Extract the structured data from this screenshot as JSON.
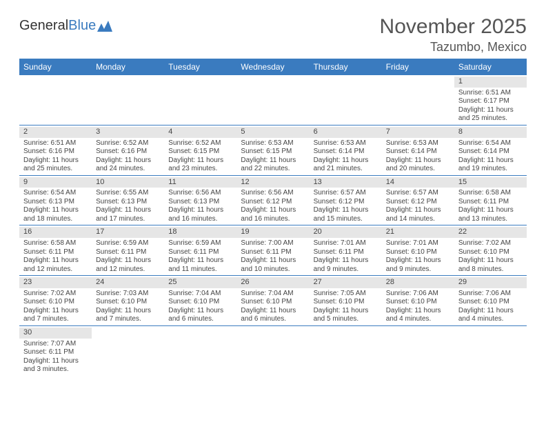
{
  "logo": {
    "text1": "General",
    "text2": "Blue"
  },
  "title": "November 2025",
  "location": "Tazumbo, Mexico",
  "colors": {
    "header_bg": "#3a7bbf",
    "header_text": "#ffffff",
    "daynum_bg": "#e6e6e6",
    "border": "#3a7bbf",
    "text": "#444444",
    "page_bg": "#ffffff"
  },
  "day_headers": [
    "Sunday",
    "Monday",
    "Tuesday",
    "Wednesday",
    "Thursday",
    "Friday",
    "Saturday"
  ],
  "weeks": [
    [
      {
        "n": "",
        "sr": "",
        "ss": "",
        "dl": ""
      },
      {
        "n": "",
        "sr": "",
        "ss": "",
        "dl": ""
      },
      {
        "n": "",
        "sr": "",
        "ss": "",
        "dl": ""
      },
      {
        "n": "",
        "sr": "",
        "ss": "",
        "dl": ""
      },
      {
        "n": "",
        "sr": "",
        "ss": "",
        "dl": ""
      },
      {
        "n": "",
        "sr": "",
        "ss": "",
        "dl": ""
      },
      {
        "n": "1",
        "sr": "Sunrise: 6:51 AM",
        "ss": "Sunset: 6:17 PM",
        "dl": "Daylight: 11 hours and 25 minutes."
      }
    ],
    [
      {
        "n": "2",
        "sr": "Sunrise: 6:51 AM",
        "ss": "Sunset: 6:16 PM",
        "dl": "Daylight: 11 hours and 25 minutes."
      },
      {
        "n": "3",
        "sr": "Sunrise: 6:52 AM",
        "ss": "Sunset: 6:16 PM",
        "dl": "Daylight: 11 hours and 24 minutes."
      },
      {
        "n": "4",
        "sr": "Sunrise: 6:52 AM",
        "ss": "Sunset: 6:15 PM",
        "dl": "Daylight: 11 hours and 23 minutes."
      },
      {
        "n": "5",
        "sr": "Sunrise: 6:53 AM",
        "ss": "Sunset: 6:15 PM",
        "dl": "Daylight: 11 hours and 22 minutes."
      },
      {
        "n": "6",
        "sr": "Sunrise: 6:53 AM",
        "ss": "Sunset: 6:14 PM",
        "dl": "Daylight: 11 hours and 21 minutes."
      },
      {
        "n": "7",
        "sr": "Sunrise: 6:53 AM",
        "ss": "Sunset: 6:14 PM",
        "dl": "Daylight: 11 hours and 20 minutes."
      },
      {
        "n": "8",
        "sr": "Sunrise: 6:54 AM",
        "ss": "Sunset: 6:14 PM",
        "dl": "Daylight: 11 hours and 19 minutes."
      }
    ],
    [
      {
        "n": "9",
        "sr": "Sunrise: 6:54 AM",
        "ss": "Sunset: 6:13 PM",
        "dl": "Daylight: 11 hours and 18 minutes."
      },
      {
        "n": "10",
        "sr": "Sunrise: 6:55 AM",
        "ss": "Sunset: 6:13 PM",
        "dl": "Daylight: 11 hours and 17 minutes."
      },
      {
        "n": "11",
        "sr": "Sunrise: 6:56 AM",
        "ss": "Sunset: 6:13 PM",
        "dl": "Daylight: 11 hours and 16 minutes."
      },
      {
        "n": "12",
        "sr": "Sunrise: 6:56 AM",
        "ss": "Sunset: 6:12 PM",
        "dl": "Daylight: 11 hours and 16 minutes."
      },
      {
        "n": "13",
        "sr": "Sunrise: 6:57 AM",
        "ss": "Sunset: 6:12 PM",
        "dl": "Daylight: 11 hours and 15 minutes."
      },
      {
        "n": "14",
        "sr": "Sunrise: 6:57 AM",
        "ss": "Sunset: 6:12 PM",
        "dl": "Daylight: 11 hours and 14 minutes."
      },
      {
        "n": "15",
        "sr": "Sunrise: 6:58 AM",
        "ss": "Sunset: 6:11 PM",
        "dl": "Daylight: 11 hours and 13 minutes."
      }
    ],
    [
      {
        "n": "16",
        "sr": "Sunrise: 6:58 AM",
        "ss": "Sunset: 6:11 PM",
        "dl": "Daylight: 11 hours and 12 minutes."
      },
      {
        "n": "17",
        "sr": "Sunrise: 6:59 AM",
        "ss": "Sunset: 6:11 PM",
        "dl": "Daylight: 11 hours and 12 minutes."
      },
      {
        "n": "18",
        "sr": "Sunrise: 6:59 AM",
        "ss": "Sunset: 6:11 PM",
        "dl": "Daylight: 11 hours and 11 minutes."
      },
      {
        "n": "19",
        "sr": "Sunrise: 7:00 AM",
        "ss": "Sunset: 6:11 PM",
        "dl": "Daylight: 11 hours and 10 minutes."
      },
      {
        "n": "20",
        "sr": "Sunrise: 7:01 AM",
        "ss": "Sunset: 6:11 PM",
        "dl": "Daylight: 11 hours and 9 minutes."
      },
      {
        "n": "21",
        "sr": "Sunrise: 7:01 AM",
        "ss": "Sunset: 6:10 PM",
        "dl": "Daylight: 11 hours and 9 minutes."
      },
      {
        "n": "22",
        "sr": "Sunrise: 7:02 AM",
        "ss": "Sunset: 6:10 PM",
        "dl": "Daylight: 11 hours and 8 minutes."
      }
    ],
    [
      {
        "n": "23",
        "sr": "Sunrise: 7:02 AM",
        "ss": "Sunset: 6:10 PM",
        "dl": "Daylight: 11 hours and 7 minutes."
      },
      {
        "n": "24",
        "sr": "Sunrise: 7:03 AM",
        "ss": "Sunset: 6:10 PM",
        "dl": "Daylight: 11 hours and 7 minutes."
      },
      {
        "n": "25",
        "sr": "Sunrise: 7:04 AM",
        "ss": "Sunset: 6:10 PM",
        "dl": "Daylight: 11 hours and 6 minutes."
      },
      {
        "n": "26",
        "sr": "Sunrise: 7:04 AM",
        "ss": "Sunset: 6:10 PM",
        "dl": "Daylight: 11 hours and 6 minutes."
      },
      {
        "n": "27",
        "sr": "Sunrise: 7:05 AM",
        "ss": "Sunset: 6:10 PM",
        "dl": "Daylight: 11 hours and 5 minutes."
      },
      {
        "n": "28",
        "sr": "Sunrise: 7:06 AM",
        "ss": "Sunset: 6:10 PM",
        "dl": "Daylight: 11 hours and 4 minutes."
      },
      {
        "n": "29",
        "sr": "Sunrise: 7:06 AM",
        "ss": "Sunset: 6:10 PM",
        "dl": "Daylight: 11 hours and 4 minutes."
      }
    ],
    [
      {
        "n": "30",
        "sr": "Sunrise: 7:07 AM",
        "ss": "Sunset: 6:11 PM",
        "dl": "Daylight: 11 hours and 3 minutes."
      },
      {
        "n": "",
        "sr": "",
        "ss": "",
        "dl": ""
      },
      {
        "n": "",
        "sr": "",
        "ss": "",
        "dl": ""
      },
      {
        "n": "",
        "sr": "",
        "ss": "",
        "dl": ""
      },
      {
        "n": "",
        "sr": "",
        "ss": "",
        "dl": ""
      },
      {
        "n": "",
        "sr": "",
        "ss": "",
        "dl": ""
      },
      {
        "n": "",
        "sr": "",
        "ss": "",
        "dl": ""
      }
    ]
  ]
}
